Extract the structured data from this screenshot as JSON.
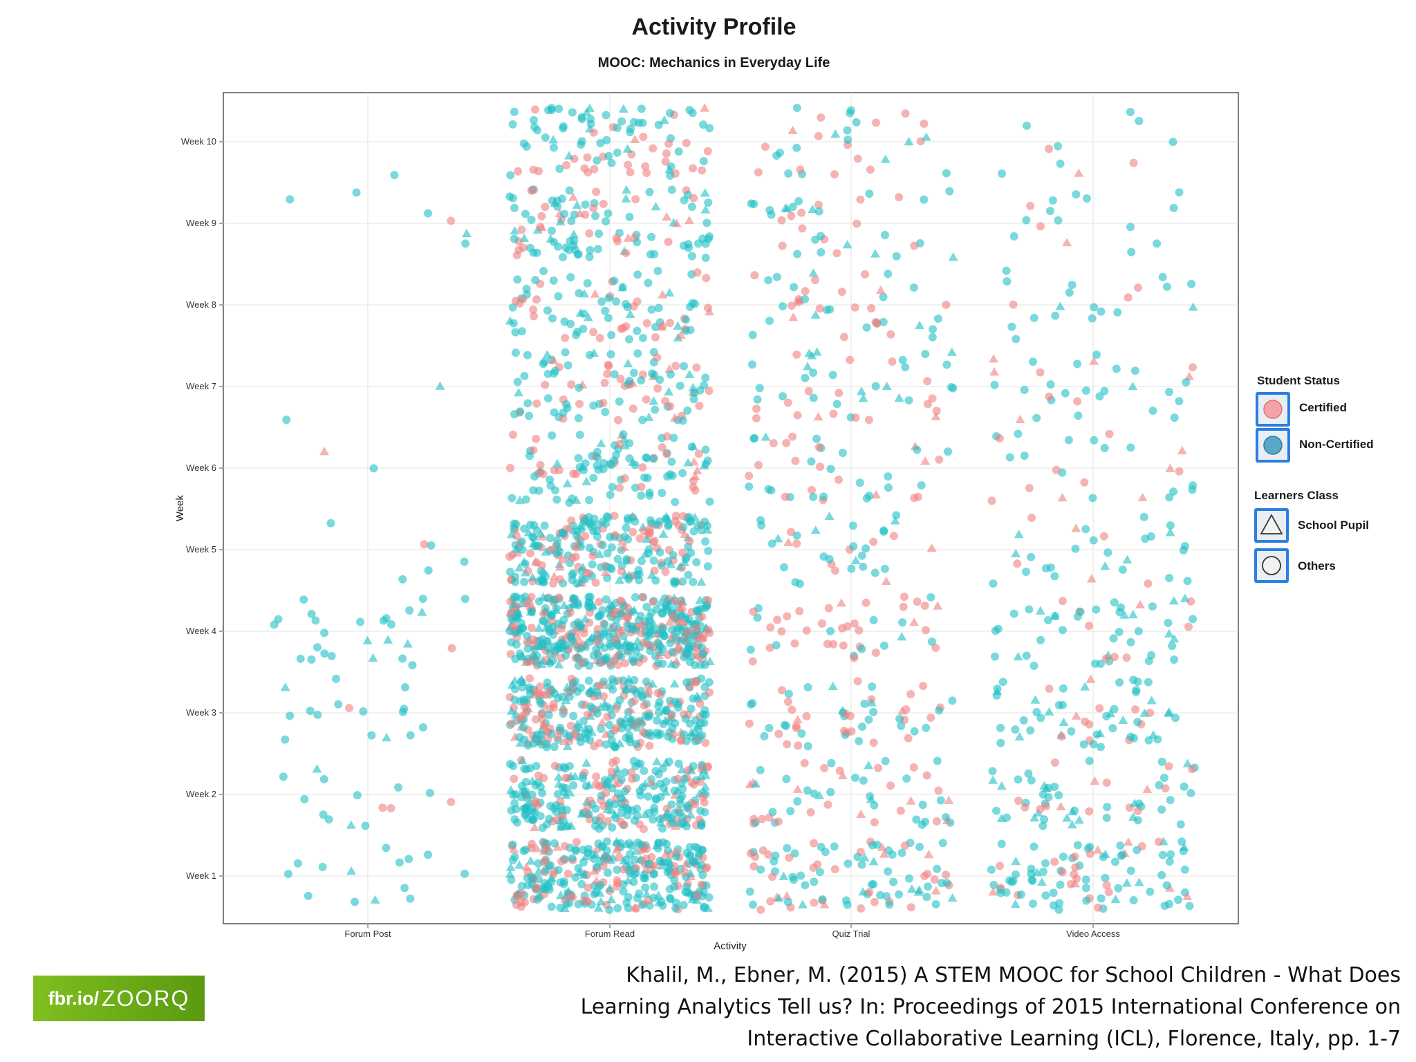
{
  "chart_data": {
    "type": "scatter",
    "title": "Activity Profile",
    "subtitle": "MOOC: Mechanics in Everyday Life",
    "xlabel": "Activity",
    "ylabel": "Week",
    "x_categories": [
      "Forum Post",
      "Forum Read",
      "Quiz Trial",
      "Video Access"
    ],
    "y_categories": [
      "Week 1",
      "Week 2",
      "Week 3",
      "Week 4",
      "Week 5",
      "Week 6",
      "Week 7",
      "Week 8",
      "Week 9",
      "Week 10"
    ],
    "grid": true,
    "jittered": true,
    "point_counts": [
      {
        "activity": "Forum Post",
        "counts": [
          14,
          14,
          16,
          26,
          6,
          2,
          2,
          0,
          6,
          1
        ],
        "certified_share": 0.12
      },
      {
        "activity": "Forum Read",
        "counts": [
          330,
          280,
          320,
          480,
          260,
          110,
          100,
          90,
          110,
          90
        ],
        "certified_share": 0.3
      },
      {
        "activity": "Quiz Trial",
        "counts": [
          95,
          55,
          55,
          45,
          35,
          40,
          45,
          40,
          35,
          30
        ],
        "certified_share": 0.45
      },
      {
        "activity": "Video Access",
        "counts": [
          95,
          60,
          60,
          50,
          30,
          25,
          30,
          20,
          15,
          10
        ],
        "certified_share": 0.25
      }
    ],
    "colors": {
      "Certified": "#f08080",
      "Non-Certified": "#1fbfc4"
    }
  },
  "legend": {
    "status_title": "Student Status",
    "status_items": [
      {
        "label": "Certified",
        "color": "#f08080"
      },
      {
        "label": "Non-Certified",
        "color": "#1fbfc4"
      }
    ],
    "class_title": "Learners Class",
    "class_items": [
      {
        "label": "School Pupil",
        "shape": "triangle"
      },
      {
        "label": "Others",
        "shape": "circle"
      }
    ]
  },
  "badge": {
    "prefix": "fbr.io/",
    "code": "ZOORQ"
  },
  "citation": {
    "lines": [
      "Khalil, M., Ebner, M. (2015) A STEM MOOC for School Children - What Does",
      "Learning Analytics Tell us? In: Proceedings of 2015 International Conference on",
      "Interactive Collaborative Learning (ICL), Florence, Italy, pp. 1-7"
    ]
  }
}
